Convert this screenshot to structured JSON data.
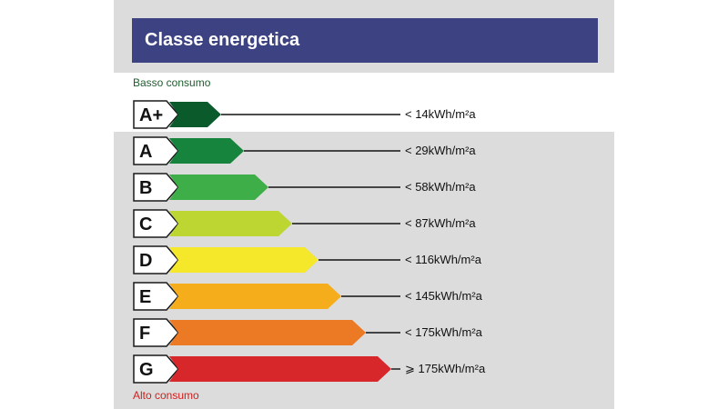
{
  "header": {
    "title": "Classe energetica"
  },
  "legend": {
    "low": "Basso consumo",
    "high": "Alto consumo"
  },
  "classes": [
    {
      "label": "A+",
      "threshold": "<  14kWh/m²a",
      "color": "#0a5a2c"
    },
    {
      "label": "A",
      "threshold": "<  29kWh/m²a",
      "color": "#16843c"
    },
    {
      "label": "B",
      "threshold": "<  58kWh/m²a",
      "color": "#3eae48"
    },
    {
      "label": "C",
      "threshold": "<  87kWh/m²a",
      "color": "#bdd631"
    },
    {
      "label": "D",
      "threshold": "< 116kWh/m²a",
      "color": "#f5e72a"
    },
    {
      "label": "E",
      "threshold": "< 145kWh/m²a",
      "color": "#f6ad1b"
    },
    {
      "label": "F",
      "threshold": "< 175kWh/m²a",
      "color": "#ec7923"
    },
    {
      "label": "G",
      "threshold": "⩾ 175kWh/m²a",
      "color": "#d8272a"
    }
  ],
  "colors": {
    "header": "#3d4283",
    "low": "#1d5e2c",
    "high": "#d1201f"
  }
}
